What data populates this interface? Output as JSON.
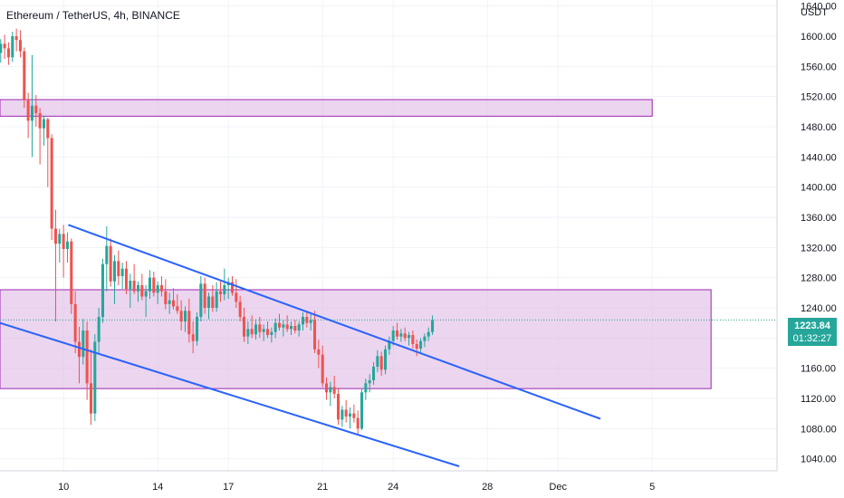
{
  "header": {
    "symbol_title": "Ethereum / TetherUS, 4h, BINANCE",
    "currency": "USDT"
  },
  "last_price": {
    "price": "1223.84",
    "countdown": "01:32:27",
    "color": "#26a69a"
  },
  "colors": {
    "up": "#26a69a",
    "down": "#ef5350",
    "trendline": "#2962ff",
    "zone_fill": "#e1bee7",
    "zone_border": "#9c27b0"
  },
  "chart_data": {
    "type": "candlestick",
    "symbol": "ETHUSDT",
    "interval": "4h",
    "exchange": "BINANCE",
    "y_axis": {
      "ticks": [
        1040,
        1080,
        1120,
        1160,
        1200,
        1240,
        1280,
        1320,
        1360,
        1400,
        1440,
        1480,
        1520,
        1560,
        1600,
        1640
      ],
      "tick_labels": [
        "1040.00",
        "1080.00",
        "1120.00",
        "1160.00",
        "1200.00",
        "1240.00",
        "1280.00",
        "1320.00",
        "1360.00",
        "1400.00",
        "1440.00",
        "1480.00",
        "1520.00",
        "1560.00",
        "1600.00",
        "1640.00"
      ],
      "range": [
        1024,
        1648
      ]
    },
    "x_axis": {
      "ticks": [
        {
          "label": "10",
          "day": 10
        },
        {
          "label": "14",
          "day": 14
        },
        {
          "label": "17",
          "day": 17
        },
        {
          "label": "21",
          "day": 21
        },
        {
          "label": "24",
          "day": 24
        },
        {
          "label": "28",
          "day": 28
        },
        {
          "label": "Dec",
          "day": 31
        },
        {
          "label": "5",
          "day": 35
        }
      ],
      "range": [
        7.3,
        40.3
      ]
    },
    "bar_duration_days": 0.1667,
    "first_bar_day": 7.33,
    "candles": [
      [
        1578,
        1596,
        1565,
        1590
      ],
      [
        1590,
        1602,
        1570,
        1584
      ],
      [
        1584,
        1592,
        1562,
        1572
      ],
      [
        1572,
        1606,
        1566,
        1600
      ],
      [
        1600,
        1610,
        1580,
        1595
      ],
      [
        1595,
        1608,
        1572,
        1580
      ],
      [
        1580,
        1585,
        1505,
        1515
      ],
      [
        1515,
        1525,
        1465,
        1488
      ],
      [
        1488,
        1575,
        1440,
        1508
      ],
      [
        1508,
        1522,
        1480,
        1498
      ],
      [
        1498,
        1505,
        1430,
        1478
      ],
      [
        1478,
        1495,
        1455,
        1490
      ],
      [
        1490,
        1492,
        1400,
        1465
      ],
      [
        1465,
        1470,
        1330,
        1345
      ],
      [
        1345,
        1370,
        1222,
        1325
      ],
      [
        1325,
        1345,
        1300,
        1338
      ],
      [
        1338,
        1350,
        1280,
        1318
      ],
      [
        1318,
        1340,
        1300,
        1328
      ],
      [
        1328,
        1332,
        1232,
        1245
      ],
      [
        1245,
        1262,
        1180,
        1195
      ],
      [
        1195,
        1215,
        1140,
        1175
      ],
      [
        1175,
        1225,
        1165,
        1210
      ],
      [
        1210,
        1222,
        1118,
        1140
      ],
      [
        1140,
        1185,
        1085,
        1100
      ],
      [
        1100,
        1205,
        1090,
        1195
      ],
      [
        1195,
        1240,
        1178,
        1228
      ],
      [
        1228,
        1305,
        1220,
        1298
      ],
      [
        1298,
        1348,
        1262,
        1322
      ],
      [
        1322,
        1332,
        1268,
        1275
      ],
      [
        1275,
        1310,
        1245,
        1302
      ],
      [
        1302,
        1316,
        1270,
        1282
      ],
      [
        1282,
        1300,
        1265,
        1292
      ],
      [
        1292,
        1302,
        1258,
        1265
      ],
      [
        1265,
        1285,
        1240,
        1276
      ],
      [
        1276,
        1298,
        1258,
        1262
      ],
      [
        1262,
        1275,
        1248,
        1270
      ],
      [
        1270,
        1285,
        1250,
        1255
      ],
      [
        1255,
        1270,
        1228,
        1262
      ],
      [
        1262,
        1290,
        1252,
        1280
      ],
      [
        1280,
        1288,
        1255,
        1260
      ],
      [
        1260,
        1275,
        1245,
        1270
      ],
      [
        1270,
        1282,
        1255,
        1262
      ],
      [
        1262,
        1278,
        1238,
        1245
      ],
      [
        1245,
        1260,
        1232,
        1250
      ],
      [
        1250,
        1266,
        1238,
        1242
      ],
      [
        1242,
        1258,
        1232,
        1236
      ],
      [
        1236,
        1250,
        1210,
        1222
      ],
      [
        1222,
        1242,
        1208,
        1236
      ],
      [
        1236,
        1252,
        1194,
        1205
      ],
      [
        1205,
        1222,
        1180,
        1196
      ],
      [
        1196,
        1234,
        1190,
        1228
      ],
      [
        1228,
        1282,
        1222,
        1272
      ],
      [
        1272,
        1280,
        1232,
        1240
      ],
      [
        1240,
        1260,
        1225,
        1255
      ],
      [
        1255,
        1270,
        1235,
        1240
      ],
      [
        1240,
        1274,
        1235,
        1262
      ],
      [
        1262,
        1275,
        1248,
        1258
      ],
      [
        1258,
        1292,
        1250,
        1270
      ],
      [
        1270,
        1280,
        1252,
        1274
      ],
      [
        1274,
        1282,
        1256,
        1260
      ],
      [
        1260,
        1278,
        1240,
        1248
      ],
      [
        1248,
        1256,
        1222,
        1228
      ],
      [
        1228,
        1240,
        1195,
        1202
      ],
      [
        1202,
        1222,
        1192,
        1212
      ],
      [
        1212,
        1230,
        1200,
        1205
      ],
      [
        1205,
        1225,
        1198,
        1218
      ],
      [
        1218,
        1228,
        1200,
        1208
      ],
      [
        1208,
        1218,
        1196,
        1212
      ],
      [
        1212,
        1222,
        1200,
        1204
      ],
      [
        1204,
        1214,
        1194,
        1208
      ],
      [
        1208,
        1226,
        1200,
        1220
      ],
      [
        1220,
        1232,
        1210,
        1214
      ],
      [
        1214,
        1224,
        1202,
        1218
      ],
      [
        1218,
        1230,
        1208,
        1212
      ],
      [
        1212,
        1222,
        1204,
        1216
      ],
      [
        1216,
        1224,
        1206,
        1210
      ],
      [
        1210,
        1222,
        1202,
        1218
      ],
      [
        1218,
        1234,
        1210,
        1228
      ],
      [
        1228,
        1236,
        1214,
        1220
      ],
      [
        1220,
        1232,
        1210,
        1224
      ],
      [
        1224,
        1236,
        1180,
        1185
      ],
      [
        1185,
        1198,
        1160,
        1178
      ],
      [
        1178,
        1190,
        1135,
        1140
      ],
      [
        1140,
        1148,
        1118,
        1128
      ],
      [
        1128,
        1142,
        1110,
        1135
      ],
      [
        1135,
        1150,
        1120,
        1126
      ],
      [
        1126,
        1134,
        1085,
        1092
      ],
      [
        1092,
        1110,
        1082,
        1105
      ],
      [
        1105,
        1118,
        1088,
        1096
      ],
      [
        1096,
        1108,
        1080,
        1100
      ],
      [
        1100,
        1112,
        1088,
        1094
      ],
      [
        1094,
        1104,
        1072,
        1080
      ],
      [
        1080,
        1132,
        1078,
        1128
      ],
      [
        1128,
        1146,
        1118,
        1140
      ],
      [
        1140,
        1152,
        1128,
        1144
      ],
      [
        1144,
        1168,
        1138,
        1162
      ],
      [
        1162,
        1184,
        1155,
        1176
      ],
      [
        1176,
        1182,
        1150,
        1158
      ],
      [
        1158,
        1190,
        1152,
        1185
      ],
      [
        1185,
        1202,
        1178,
        1196
      ],
      [
        1196,
        1216,
        1190,
        1210
      ],
      [
        1210,
        1220,
        1198,
        1202
      ],
      [
        1202,
        1212,
        1195,
        1206
      ],
      [
        1206,
        1214,
        1196,
        1200
      ],
      [
        1200,
        1208,
        1190,
        1204
      ],
      [
        1204,
        1210,
        1186,
        1192
      ],
      [
        1192,
        1198,
        1176,
        1186
      ],
      [
        1186,
        1200,
        1180,
        1196
      ],
      [
        1196,
        1206,
        1188,
        1202
      ],
      [
        1202,
        1214,
        1196,
        1208
      ],
      [
        1208,
        1230,
        1204,
        1224
      ]
    ],
    "annotations": {
      "horizontal_zones": [
        {
          "price_low": 1494,
          "price_high": 1516,
          "day_start": 7.3,
          "day_end": 35.0
        },
        {
          "price_low": 1133,
          "price_high": 1264,
          "day_start": 7.3,
          "day_end": 37.5
        }
      ],
      "trendlines": [
        {
          "start": {
            "day": 10.2,
            "price": 1350
          },
          "end": {
            "day": 32.8,
            "price": 1093
          }
        },
        {
          "start": {
            "day": 7.3,
            "price": 1220
          },
          "end": {
            "day": 26.8,
            "price": 1030
          }
        }
      ]
    }
  }
}
